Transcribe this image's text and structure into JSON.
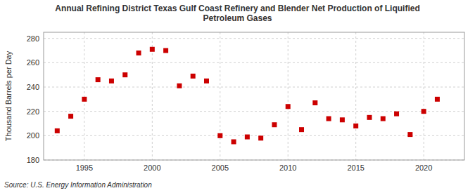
{
  "chart_data": {
    "type": "scatter",
    "title": "Annual Refining District Texas Gulf Coast Refinery and Blender Net Production of Liquified\nPetroleum Gases",
    "y_label": "Thousand Barrels per Day",
    "source": "Source: U.S. Energy Information Administration",
    "x": [
      1993,
      1994,
      1995,
      1996,
      1997,
      1998,
      1999,
      2000,
      2001,
      2002,
      2003,
      2004,
      2005,
      2006,
      2007,
      2008,
      2009,
      2010,
      2011,
      2012,
      2013,
      2014,
      2015,
      2016,
      2017,
      2018,
      2019,
      2020,
      2021
    ],
    "values": [
      204,
      216,
      230,
      246,
      245,
      250,
      268,
      271,
      270,
      241,
      249,
      245,
      200,
      195,
      199,
      198,
      209,
      224,
      205,
      227,
      214,
      213,
      208,
      215,
      214,
      218,
      201,
      220,
      230
    ],
    "xlim": [
      1992,
      2023
    ],
    "ylim": [
      180,
      285
    ],
    "xticks": [
      1995,
      2000,
      2005,
      2010,
      2015,
      2020
    ],
    "yticks": [
      180,
      200,
      220,
      240,
      260,
      280
    ],
    "color": "#cc0000",
    "marker": "square",
    "grid": true
  }
}
